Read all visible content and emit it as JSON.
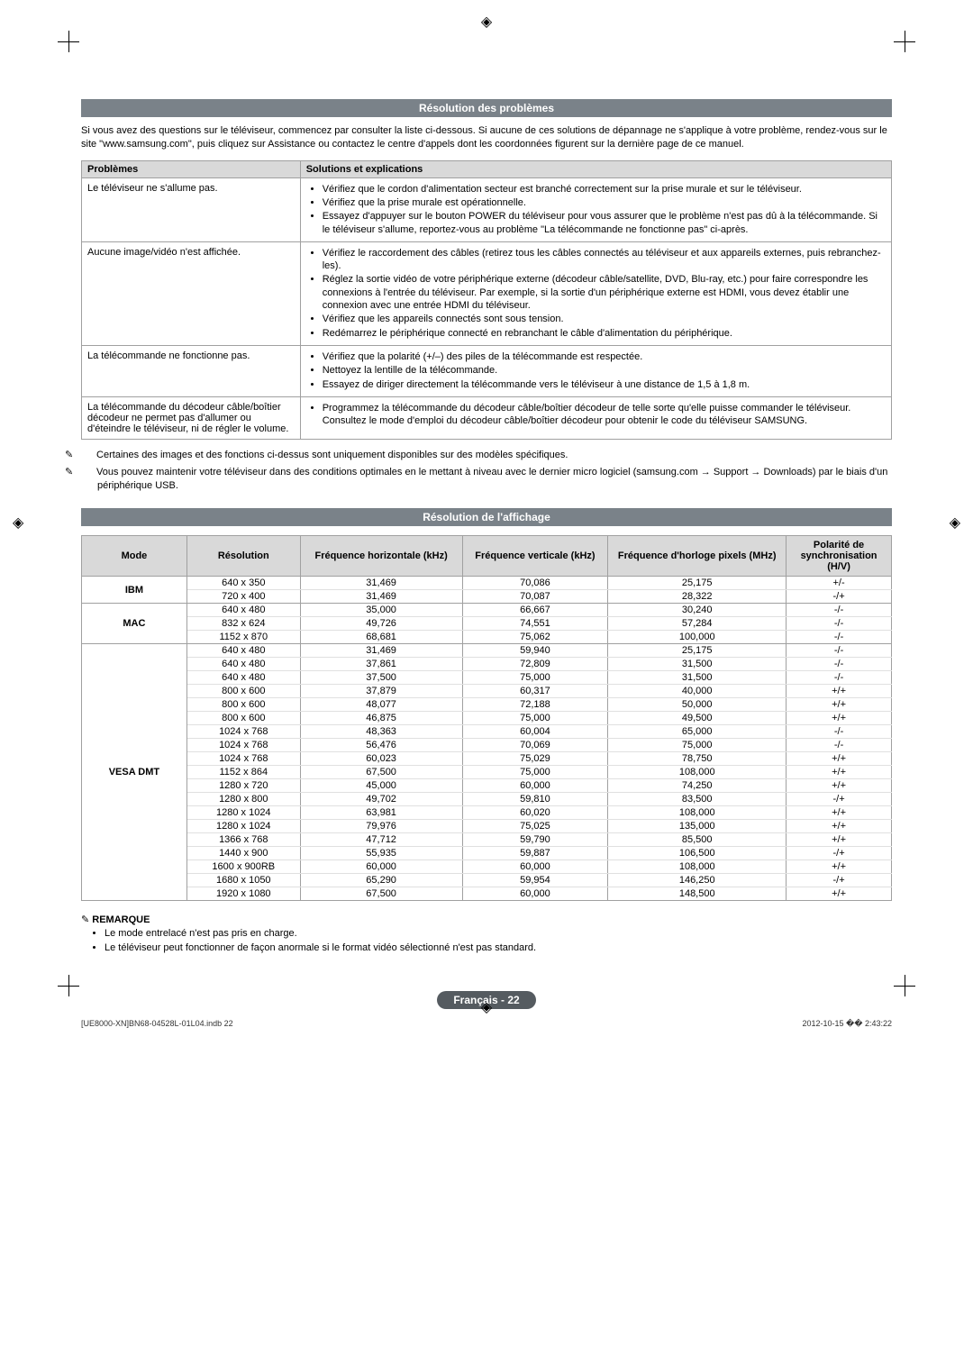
{
  "registration_mark": "◈",
  "section1": {
    "title": "Résolution des problèmes",
    "intro": "Si vous avez des questions sur le téléviseur, commencez par consulter la liste ci-dessous. Si aucune de ces solutions de dépannage ne s'applique à votre problème, rendez-vous sur le site \"www.samsung.com\", puis cliquez sur Assistance ou contactez le centre d'appels dont les coordonnées figurent sur la dernière page de ce manuel.",
    "headers": {
      "col1": "Problèmes",
      "col2": "Solutions et explications"
    },
    "rows": [
      {
        "problem": "Le téléviseur ne s'allume pas.",
        "solutions": [
          "Vérifiez que le cordon d'alimentation secteur est branché correctement sur la prise murale et sur le téléviseur.",
          "Vérifiez que la prise murale est opérationnelle.",
          "Essayez d'appuyer sur le bouton POWER du téléviseur pour vous assurer que le problème n'est pas dû à la télécommande. Si le téléviseur s'allume, reportez-vous au problème \"La télécommande ne fonctionne pas\" ci-après."
        ]
      },
      {
        "problem": "Aucune image/vidéo n'est affichée.",
        "solutions": [
          "Vérifiez le raccordement des câbles (retirez tous les câbles connectés au téléviseur et aux appareils externes, puis rebranchez-les).",
          "Réglez la sortie vidéo de votre périphérique externe (décodeur câble/satellite, DVD, Blu-ray, etc.) pour faire correspondre les connexions à l'entrée du téléviseur. Par exemple, si la sortie d'un périphérique externe est HDMI, vous devez établir une connexion avec une entrée HDMI du téléviseur.",
          "Vérifiez que les appareils connectés sont sous tension.",
          "Redémarrez le périphérique connecté en rebranchant le câble d'alimentation du périphérique."
        ]
      },
      {
        "problem": "La télécommande ne fonctionne pas.",
        "solutions": [
          "Vérifiez que la polarité (+/–) des piles de la télécommande est respectée.",
          "Nettoyez la lentille de la télécommande.",
          "Essayez de diriger directement la télécommande vers le téléviseur à une distance de 1,5 à 1,8 m."
        ]
      },
      {
        "problem": "La télécommande du décodeur câble/boîtier décodeur ne permet pas d'allumer ou d'éteindre le téléviseur, ni de régler le volume.",
        "solutions": [
          "Programmez la télécommande du décodeur câble/boîtier décodeur de telle sorte qu'elle puisse commander le téléviseur. Consultez le mode d'emploi du décodeur câble/boîtier décodeur pour obtenir le code du téléviseur SAMSUNG."
        ]
      }
    ],
    "notes": [
      "Certaines des images et des fonctions ci-dessus sont uniquement disponibles sur des modèles spécifiques.",
      "Vous pouvez maintenir votre téléviseur dans des conditions optimales en le mettant à niveau avec le dernier micro logiciel (samsung.com → Support → Downloads) par le biais d'un périphérique USB."
    ],
    "note_icon": "✎"
  },
  "section2": {
    "title": "Résolution de l'affichage",
    "headers": {
      "mode": "Mode",
      "resolution": "Résolution",
      "hfreq": "Fréquence horizontale (kHz)",
      "vfreq": "Fréquence verticale (kHz)",
      "pclk": "Fréquence d'horloge pixels (MHz)",
      "pol": "Polarité de synchronisation (H/V)"
    },
    "groups": [
      {
        "mode": "IBM",
        "rows": [
          [
            "640 x 350",
            "31,469",
            "70,086",
            "25,175",
            "+/-"
          ],
          [
            "720 x 400",
            "31,469",
            "70,087",
            "28,322",
            "-/+"
          ]
        ]
      },
      {
        "mode": "MAC",
        "rows": [
          [
            "640 x 480",
            "35,000",
            "66,667",
            "30,240",
            "-/-"
          ],
          [
            "832 x 624",
            "49,726",
            "74,551",
            "57,284",
            "-/-"
          ],
          [
            "1152 x 870",
            "68,681",
            "75,062",
            "100,000",
            "-/-"
          ]
        ]
      },
      {
        "mode": "VESA DMT",
        "rows": [
          [
            "640 x 480",
            "31,469",
            "59,940",
            "25,175",
            "-/-"
          ],
          [
            "640 x 480",
            "37,861",
            "72,809",
            "31,500",
            "-/-"
          ],
          [
            "640 x 480",
            "37,500",
            "75,000",
            "31,500",
            "-/-"
          ],
          [
            "800 x 600",
            "37,879",
            "60,317",
            "40,000",
            "+/+"
          ],
          [
            "800 x 600",
            "48,077",
            "72,188",
            "50,000",
            "+/+"
          ],
          [
            "800 x 600",
            "46,875",
            "75,000",
            "49,500",
            "+/+"
          ],
          [
            "1024 x 768",
            "48,363",
            "60,004",
            "65,000",
            "-/-"
          ],
          [
            "1024 x 768",
            "56,476",
            "70,069",
            "75,000",
            "-/-"
          ],
          [
            "1024 x 768",
            "60,023",
            "75,029",
            "78,750",
            "+/+"
          ],
          [
            "1152 x 864",
            "67,500",
            "75,000",
            "108,000",
            "+/+"
          ],
          [
            "1280 x 720",
            "45,000",
            "60,000",
            "74,250",
            "+/+"
          ],
          [
            "1280 x 800",
            "49,702",
            "59,810",
            "83,500",
            "-/+"
          ],
          [
            "1280 x 1024",
            "63,981",
            "60,020",
            "108,000",
            "+/+"
          ],
          [
            "1280 x 1024",
            "79,976",
            "75,025",
            "135,000",
            "+/+"
          ],
          [
            "1366 x 768",
            "47,712",
            "59,790",
            "85,500",
            "+/+"
          ],
          [
            "1440 x 900",
            "55,935",
            "59,887",
            "106,500",
            "-/+"
          ],
          [
            "1600 x 900RB",
            "60,000",
            "60,000",
            "108,000",
            "+/+"
          ],
          [
            "1680 x 1050",
            "65,290",
            "59,954",
            "146,250",
            "-/+"
          ],
          [
            "1920 x 1080",
            "67,500",
            "60,000",
            "148,500",
            "+/+"
          ]
        ]
      }
    ],
    "remarque": {
      "title": "REMARQUE",
      "icon": "✎",
      "items": [
        "Le mode entrelacé n'est pas pris en charge.",
        "Le téléviseur peut fonctionner de façon anormale si le format vidéo sélectionné n'est pas standard."
      ]
    }
  },
  "footer": {
    "lang": "Français - 22",
    "left": "[UE8000-XN]BN68-04528L-01L04.indb   22",
    "right": "2012-10-15   �� 2:43:22"
  }
}
